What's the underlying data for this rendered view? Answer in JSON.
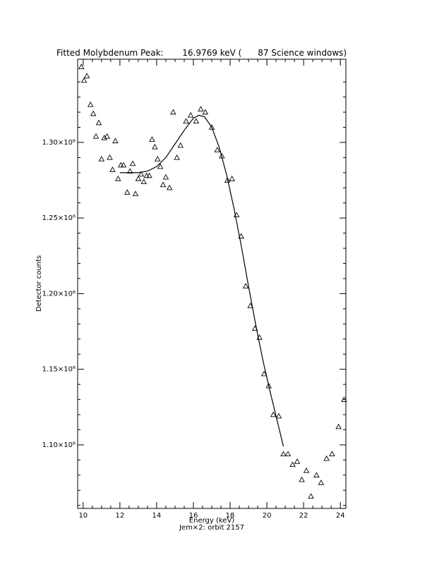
{
  "chart_data": {
    "type": "scatter",
    "title": "Fitted Molybdenum Peak:       16.9769 keV (      87 Science windows)",
    "xlabel": "Energy (keV)",
    "ylabel": "Detector counts",
    "footer": "Jem×2: orbit 2157",
    "xlim": [
      9.7,
      24.3
    ],
    "ylim": [
      1.058,
      1.355
    ],
    "xticks": [
      10,
      12,
      14,
      16,
      18,
      20,
      22,
      24
    ],
    "xtick_labels": [
      "10",
      "12",
      "14",
      "16",
      "18",
      "20",
      "22",
      "24"
    ],
    "yticks": [
      1.1,
      1.15,
      1.2,
      1.25,
      1.3
    ],
    "ytick_labels": [
      "1.10×10⁶",
      "1.15×10⁶",
      "1.20×10⁶",
      "1.25×10⁶",
      "1.30×10⁶"
    ],
    "y_scale_factor": 1000000,
    "grid": false,
    "marker": "triangle",
    "series": [
      {
        "points": [
          [
            9.9,
            1.35
          ],
          [
            10.05,
            1.341
          ],
          [
            10.2,
            1.344
          ],
          [
            10.4,
            1.325
          ],
          [
            10.55,
            1.319
          ],
          [
            10.7,
            1.304
          ],
          [
            10.85,
            1.313
          ],
          [
            11.0,
            1.289
          ],
          [
            11.15,
            1.303
          ],
          [
            11.3,
            1.304
          ],
          [
            11.45,
            1.29
          ],
          [
            11.6,
            1.282
          ],
          [
            11.75,
            1.301
          ],
          [
            11.9,
            1.276
          ],
          [
            12.05,
            1.285
          ],
          [
            12.2,
            1.285
          ],
          [
            12.4,
            1.267
          ],
          [
            12.55,
            1.281
          ],
          [
            12.7,
            1.286
          ],
          [
            12.85,
            1.266
          ],
          [
            13.0,
            1.276
          ],
          [
            13.15,
            1.279
          ],
          [
            13.3,
            1.274
          ],
          [
            13.45,
            1.278
          ],
          [
            13.6,
            1.278
          ],
          [
            13.75,
            1.302
          ],
          [
            13.9,
            1.297
          ],
          [
            14.05,
            1.289
          ],
          [
            14.2,
            1.284
          ],
          [
            14.35,
            1.272
          ],
          [
            14.5,
            1.277
          ],
          [
            14.7,
            1.27
          ],
          [
            14.9,
            1.32
          ],
          [
            15.1,
            1.29
          ],
          [
            15.3,
            1.298
          ],
          [
            15.6,
            1.314
          ],
          [
            15.85,
            1.318
          ],
          [
            16.15,
            1.314
          ],
          [
            16.4,
            1.322
          ],
          [
            16.65,
            1.32
          ],
          [
            17.0,
            1.31
          ],
          [
            17.3,
            1.295
          ],
          [
            17.55,
            1.291
          ],
          [
            17.85,
            1.275
          ],
          [
            18.1,
            1.276
          ],
          [
            18.35,
            1.252
          ],
          [
            18.6,
            1.238
          ],
          [
            18.85,
            1.205
          ],
          [
            19.1,
            1.192
          ],
          [
            19.35,
            1.177
          ],
          [
            19.6,
            1.171
          ],
          [
            19.85,
            1.147
          ],
          [
            20.1,
            1.139
          ],
          [
            20.35,
            1.12
          ],
          [
            20.65,
            1.119
          ],
          [
            20.9,
            1.094
          ],
          [
            21.15,
            1.094
          ],
          [
            21.4,
            1.087
          ],
          [
            21.65,
            1.089
          ],
          [
            21.9,
            1.077
          ],
          [
            22.15,
            1.083
          ],
          [
            22.4,
            1.066
          ],
          [
            22.7,
            1.08
          ],
          [
            22.95,
            1.075
          ],
          [
            23.25,
            1.091
          ],
          [
            23.55,
            1.094
          ],
          [
            23.9,
            1.112
          ],
          [
            24.2,
            1.13
          ]
        ]
      }
    ],
    "fit": [
      [
        12.0,
        1.28
      ],
      [
        12.5,
        1.28
      ],
      [
        13.0,
        1.28
      ],
      [
        13.5,
        1.281
      ],
      [
        14.0,
        1.284
      ],
      [
        14.5,
        1.29
      ],
      [
        15.0,
        1.299
      ],
      [
        15.5,
        1.308
      ],
      [
        16.0,
        1.316
      ],
      [
        16.3,
        1.318
      ],
      [
        16.6,
        1.317
      ],
      [
        17.0,
        1.31
      ],
      [
        17.4,
        1.297
      ],
      [
        17.8,
        1.279
      ],
      [
        18.2,
        1.257
      ],
      [
        18.6,
        1.232
      ],
      [
        19.0,
        1.205
      ],
      [
        19.4,
        1.179
      ],
      [
        19.8,
        1.155
      ],
      [
        20.2,
        1.134
      ],
      [
        20.6,
        1.114
      ],
      [
        20.9,
        1.099
      ]
    ]
  }
}
